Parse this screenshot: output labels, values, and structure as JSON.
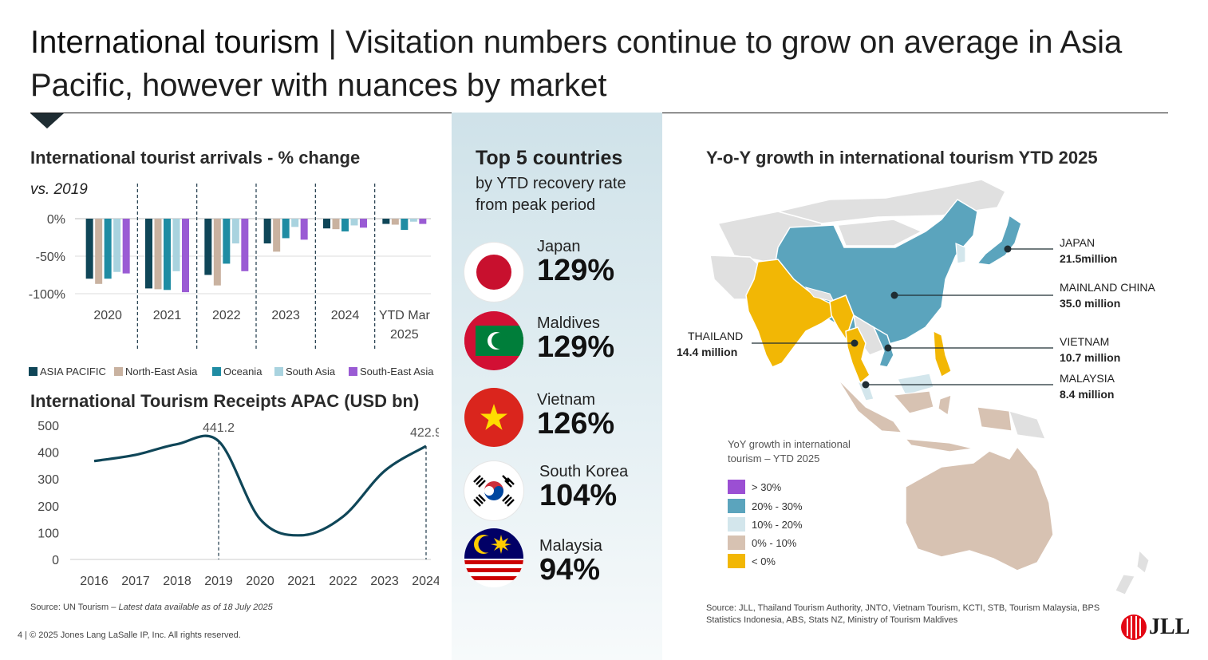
{
  "header": {
    "title_bold": "International tourism",
    "title_sep": " | ",
    "title_rest": "Visitation numbers continue to grow on average in Asia Pacific, however with nuances by market"
  },
  "bars": {
    "title": "International tourist arrivals - % change",
    "subtitle": "vs. 2019",
    "legend": [
      "ASIA PACIFIC",
      "North-East Asia",
      "Oceania",
      "South Asia",
      "South-East Asia"
    ],
    "colors": [
      "#0f4658",
      "#c9b2a0",
      "#1f8ca3",
      "#a9d3df",
      "#9a5bd4"
    ]
  },
  "receipts": {
    "title": "International Tourism Receipts APAC (USD bn)"
  },
  "center": {
    "title": "Top 5 countries",
    "subtitle": "by YTD recovery rate from peak period",
    "countries": [
      {
        "name": "Japan",
        "value": "129%"
      },
      {
        "name": "Maldives",
        "value": "129%"
      },
      {
        "name": "Vietnam",
        "value": "126%"
      },
      {
        "name": "South Korea",
        "value": "104%"
      },
      {
        "name": "Malaysia",
        "value": "94%"
      }
    ]
  },
  "map": {
    "title": "Y-o-Y growth in international tourism YTD 2025",
    "legend_title": "YoY growth in international tourism – YTD 2025",
    "legend": [
      {
        "label": "> 30%",
        "color": "#9b4fd3"
      },
      {
        "label": "20% - 30%",
        "color": "#5ba4bd"
      },
      {
        "label": "10% - 20%",
        "color": "#d3e6ec"
      },
      {
        "label": "0% - 10%",
        "color": "#d7c2b2"
      },
      {
        "label": "< 0%",
        "color": "#f2b705"
      }
    ],
    "callouts": [
      {
        "name": "JAPAN",
        "value": "21.5million"
      },
      {
        "name": "MAINLAND CHINA",
        "value": "35.0 million"
      },
      {
        "name": "THAILAND",
        "value": "14.4 million"
      },
      {
        "name": "VIETNAM",
        "value": "10.7 million"
      },
      {
        "name": "MALAYSIA",
        "value": "8.4 million"
      }
    ]
  },
  "sources": {
    "left_plain": "Source: UN Tourism – ",
    "left_italic": "Latest data available as of 18 July 2025",
    "right": "Source: JLL, Thailand Tourism Authority, JNTO, Vietnam Tourism, KCTI, STB, Tourism Malaysia, BPS Statistics Indonesia, ABS, Stats NZ, Ministry of Tourism Maldives",
    "footer": "4  |  © 2025 Jones Lang LaSalle IP, Inc. All rights reserved.",
    "logo": "JLL"
  },
  "chart_data": [
    {
      "type": "bar",
      "title": "International tourist arrivals - % change",
      "subtitle": "vs. 2019",
      "categories": [
        "2020",
        "2021",
        "2022",
        "2023",
        "2024",
        "YTD Mar 2025"
      ],
      "series": [
        {
          "name": "ASIA PACIFIC",
          "values": [
            -80,
            -93,
            -75,
            -33,
            -13,
            -7
          ]
        },
        {
          "name": "North-East Asia",
          "values": [
            -87,
            -94,
            -89,
            -44,
            -14,
            -8
          ]
        },
        {
          "name": "Oceania",
          "values": [
            -80,
            -95,
            -60,
            -26,
            -17,
            -15
          ]
        },
        {
          "name": "South Asia",
          "values": [
            -71,
            -70,
            -33,
            -11,
            -9,
            -4
          ]
        },
        {
          "name": "South-East Asia",
          "values": [
            -73,
            -98,
            -70,
            -28,
            -12,
            -7
          ]
        }
      ],
      "ylim": [
        -100,
        0
      ],
      "yticks": [
        0,
        -50,
        -100
      ],
      "ytick_labels": [
        "0%",
        "-50%",
        "-100%"
      ]
    },
    {
      "type": "line",
      "title": "International Tourism Receipts APAC (USD bn)",
      "x": [
        "2016",
        "2017",
        "2018",
        "2019",
        "2020",
        "2021",
        "2022",
        "2023",
        "2024"
      ],
      "values": [
        367,
        390,
        430,
        441.2,
        150,
        90,
        160,
        330,
        422.9
      ],
      "annotations": [
        {
          "x": "2019",
          "label": "441.2"
        },
        {
          "x": "2024",
          "label": "422.9"
        }
      ],
      "ylim": [
        0,
        500
      ],
      "yticks": [
        0,
        100,
        200,
        300,
        400,
        500
      ]
    }
  ]
}
